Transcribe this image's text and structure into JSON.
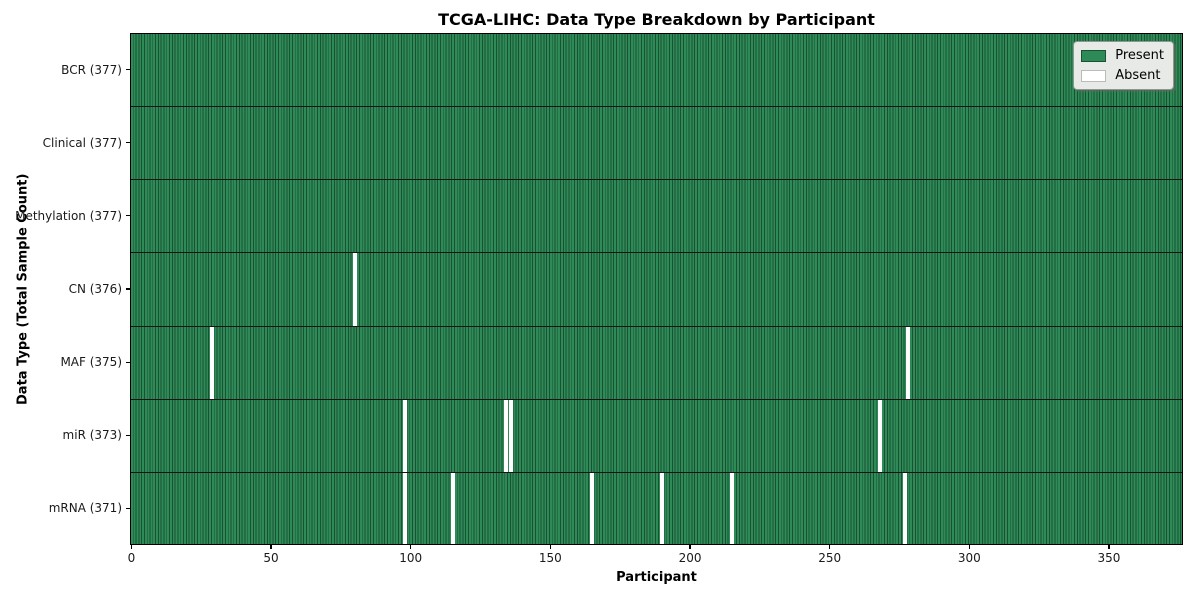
{
  "chart_data": {
    "type": "heatmap",
    "title": "TCGA-LIHC: Data Type Breakdown by Participant",
    "xlabel": "Participant",
    "ylabel": "Data Type (Total Sample Count)",
    "x_ticks": [
      0,
      50,
      100,
      150,
      200,
      250,
      300,
      350
    ],
    "x_range": [
      -0.5,
      376.5
    ],
    "n_participants": 377,
    "grid": false,
    "legend_position": "upper right",
    "legend": [
      {
        "label": "Present",
        "color": "#2e8b57"
      },
      {
        "label": "Absent",
        "color": "#ffffff"
      }
    ],
    "rows": [
      {
        "label": "BCR (377)",
        "data_type": "BCR",
        "total": 377,
        "absent_participants": []
      },
      {
        "label": "Clinical (377)",
        "data_type": "Clinical",
        "total": 377,
        "absent_participants": []
      },
      {
        "label": "Methylation (377)",
        "data_type": "Methylation",
        "total": 377,
        "absent_participants": []
      },
      {
        "label": "CN (376)",
        "data_type": "CN",
        "total": 376,
        "absent_participants": [
          80
        ]
      },
      {
        "label": "MAF (375)",
        "data_type": "MAF",
        "total": 375,
        "absent_participants": [
          29,
          278
        ]
      },
      {
        "label": "miR (373)",
        "data_type": "miR",
        "total": 373,
        "absent_participants": [
          98,
          134,
          136,
          268
        ]
      },
      {
        "label": "mRNA (371)",
        "data_type": "mRNA",
        "total": 371,
        "absent_participants": [
          98,
          115,
          165,
          190,
          215,
          277
        ]
      }
    ],
    "colors": {
      "present": "#2e8b57",
      "absent": "#ffffff",
      "cell_edge": "#1b5133",
      "row_divider": "#151515",
      "plot_border": "#000000",
      "tick_text": "#1a1a1a",
      "legend_bg": "#e7eae7",
      "legend_border": "#8f968f",
      "legend_absent_edge": "#bbbbbb"
    }
  }
}
